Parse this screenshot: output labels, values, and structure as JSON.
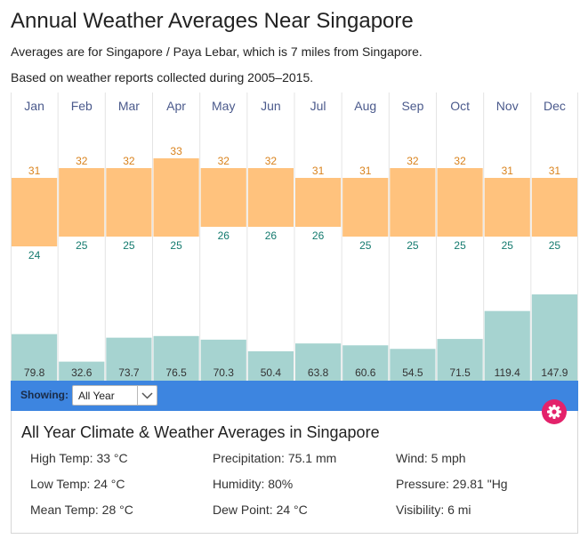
{
  "page": {
    "title": "Annual Weather Averages Near Singapore",
    "subtitle1": "Averages are for Singapore / Paya Lebar, which is 7 miles from Singapore.",
    "subtitle2": "Based on weather reports collected during 2005–2015."
  },
  "chart_data": {
    "type": "bar",
    "categories": [
      "Jan",
      "Feb",
      "Mar",
      "Apr",
      "May",
      "Jun",
      "Jul",
      "Aug",
      "Sep",
      "Oct",
      "Nov",
      "Dec"
    ],
    "series": [
      {
        "name": "",
        "values": [
          31,
          32,
          32,
          33,
          32,
          32,
          31,
          31,
          32,
          32,
          31,
          31
        ]
      },
      {
        "name": "",
        "values": [
          24,
          25,
          25,
          25,
          26,
          26,
          26,
          25,
          25,
          25,
          25,
          25
        ]
      },
      {
        "name": "",
        "values": [
          79.8,
          32.6,
          73.7,
          76.5,
          70.3,
          50.4,
          63.8,
          60.6,
          54.5,
          71.5,
          119.4,
          147.9
        ]
      }
    ],
    "colors": {
      "temp_range": "#ffc27d",
      "high_label": "#d9821c",
      "low_label": "#137a6e",
      "precip": "#a6d3d0",
      "month_label": "#4b5a8c",
      "grid": "#e4e4e4"
    }
  },
  "showing": {
    "label": "Showing:",
    "selected": "All Year",
    "bar_color": "#3d85e0"
  },
  "summary": {
    "title": "All Year Climate & Weather Averages in Singapore",
    "col1": [
      "High Temp: 33 °C",
      "Low Temp: 24 °C",
      "Mean Temp: 28 °C"
    ],
    "col2": [
      "Precipitation: 75.1 mm",
      "Humidity: 80%",
      "Dew Point: 24 °C"
    ],
    "col3": [
      "Wind: 5 mph",
      "Pressure: 29.81 \"Hg",
      "Visibility: 6 mi"
    ],
    "gear_color": "#e3226b"
  }
}
